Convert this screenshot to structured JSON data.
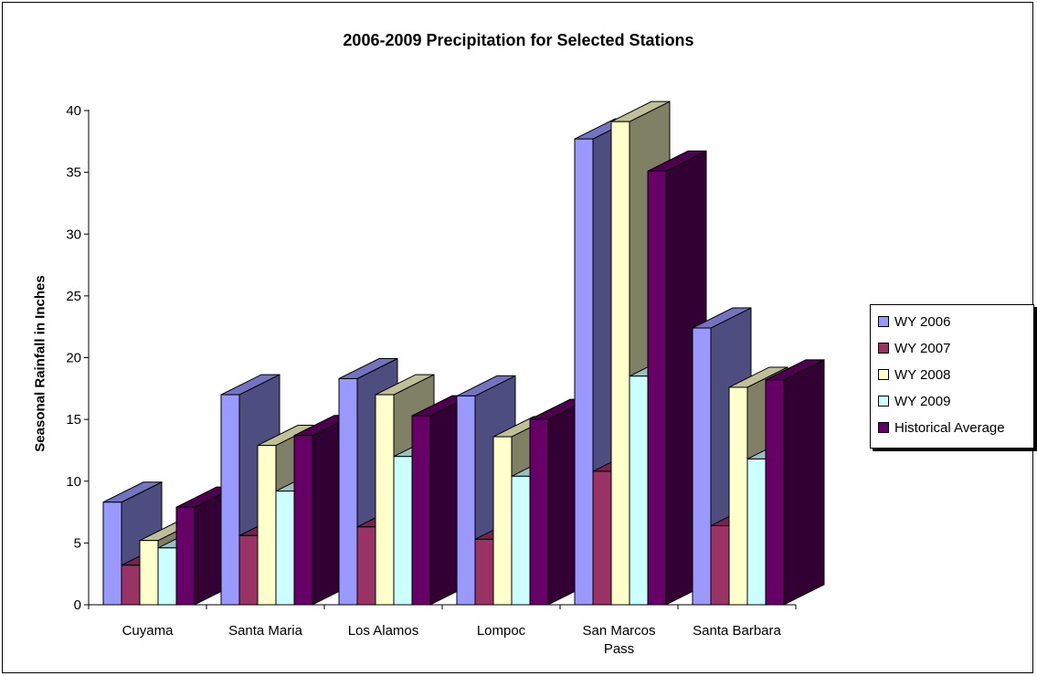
{
  "chart_data": {
    "type": "bar",
    "style": "3d-clustered-column",
    "title": "2006-2009 Precipitation for Selected Stations",
    "ylabel": "Seasonal Rainfall in Inches",
    "xlabel": "",
    "ylim": [
      0,
      40
    ],
    "yticks": [
      "0",
      "5",
      "10",
      "15",
      "20",
      "25",
      "30",
      "35",
      "40"
    ],
    "categories": [
      "Cuyama",
      "Santa Maria",
      "Los Alamos",
      "Lompoc",
      "San Marcos Pass",
      "Santa Barbara"
    ],
    "category_lines": [
      [
        "Cuyama"
      ],
      [
        "Santa Maria"
      ],
      [
        "Los Alamos"
      ],
      [
        "Lompoc"
      ],
      [
        "San Marcos",
        "Pass"
      ],
      [
        "Santa Barbara"
      ]
    ],
    "series": [
      {
        "name": "WY 2006",
        "color": "#9999ff",
        "values": [
          8.3,
          17.0,
          18.3,
          16.9,
          37.7,
          22.4
        ]
      },
      {
        "name": "WY 2007",
        "color": "#993366",
        "values": [
          3.2,
          5.6,
          6.3,
          5.3,
          10.8,
          6.4
        ]
      },
      {
        "name": "WY 2008",
        "color": "#ffffcc",
        "values": [
          5.2,
          12.9,
          17.0,
          13.6,
          39.1,
          17.6
        ]
      },
      {
        "name": "WY 2009",
        "color": "#ccffff",
        "values": [
          4.6,
          9.2,
          12.0,
          10.4,
          18.5,
          11.8
        ]
      },
      {
        "name": "Historical Average",
        "color": "#660066",
        "values": [
          7.9,
          13.7,
          15.3,
          15.0,
          35.1,
          18.2
        ]
      }
    ],
    "grid": false,
    "legend_position": "right"
  }
}
